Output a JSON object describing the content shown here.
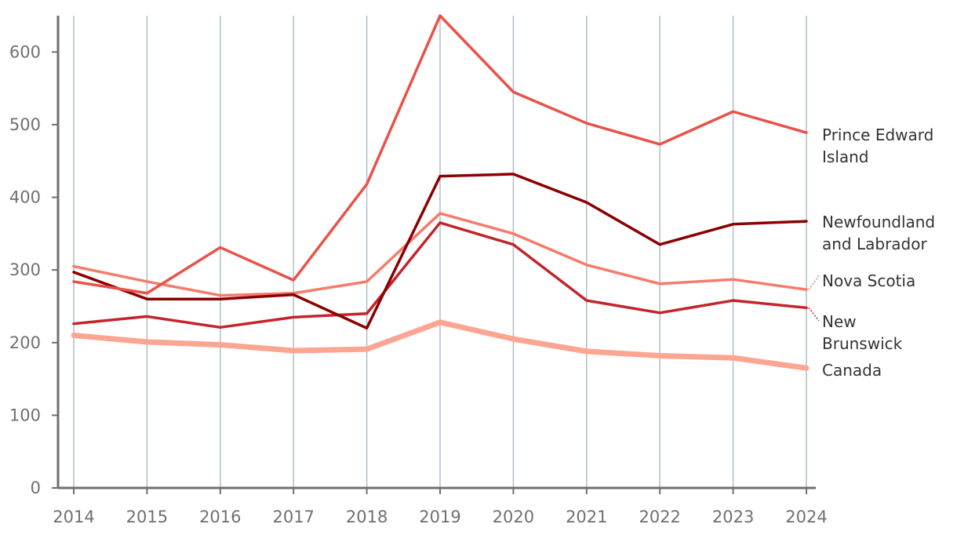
{
  "chart_data": {
    "type": "line",
    "title": "",
    "xlabel": "",
    "ylabel": "",
    "x": [
      2014,
      2015,
      2016,
      2017,
      2018,
      2019,
      2020,
      2021,
      2022,
      2023,
      2024
    ],
    "ylim": [
      0,
      650
    ],
    "y_ticks": [
      0,
      100,
      200,
      300,
      400,
      500,
      600
    ],
    "grid": "vertical",
    "legend": "direct labels at right end of lines",
    "series": [
      {
        "name": "Prince Edward Island",
        "label_lines": [
          "Prince Edward",
          "Island"
        ],
        "color": "#e8524a",
        "values": [
          284,
          268,
          331,
          286,
          418,
          650,
          545,
          502,
          473,
          518,
          489
        ]
      },
      {
        "name": "Newfoundland and Labrador",
        "label_lines": [
          "Newfoundland",
          "and Labrador"
        ],
        "color": "#8b0000",
        "values": [
          297,
          260,
          260,
          266,
          220,
          429,
          432,
          393,
          335,
          363,
          367
        ]
      },
      {
        "name": "Nova Scotia",
        "label_lines": [
          "Nova Scotia"
        ],
        "color": "#f47c6c",
        "values": [
          305,
          284,
          265,
          268,
          284,
          378,
          350,
          307,
          281,
          287,
          273
        ]
      },
      {
        "name": "New Brunswick",
        "label_lines": [
          "New",
          "Brunswick"
        ],
        "color": "#c4242b",
        "values": [
          226,
          236,
          221,
          235,
          240,
          365,
          335,
          258,
          241,
          258,
          248
        ]
      },
      {
        "name": "Canada",
        "label_lines": [
          "Canada"
        ],
        "color": "#fca592",
        "values": [
          210,
          201,
          197,
          189,
          191,
          228,
          205,
          188,
          182,
          179,
          165
        ]
      }
    ]
  }
}
